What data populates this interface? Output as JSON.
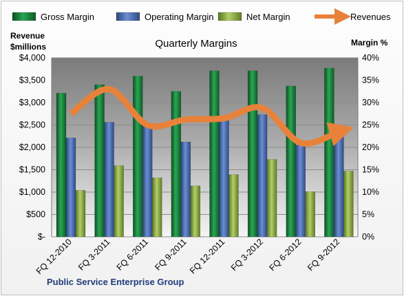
{
  "chart_data": {
    "type": "bar",
    "title": "Quarterly Margins",
    "left_axis_title": [
      "Revenue",
      "$millions"
    ],
    "right_axis_title": "Margin %",
    "footer": "Public Service Enterprise Group",
    "categories": [
      "FQ 12-2010",
      "FQ 3-2011",
      "FQ 6-2011",
      "FQ 9-2011",
      "FQ 12-2011",
      "FQ 3-2012",
      "FQ 6-2012",
      "FQ 9-2012"
    ],
    "series": [
      {
        "name": "Gross Margin",
        "axis": "right",
        "color": "#1e8a43",
        "values": [
          32.1,
          34.0,
          35.9,
          32.5,
          37.1,
          37.1,
          33.7,
          37.7
        ]
      },
      {
        "name": "Operating Margin",
        "axis": "right",
        "color": "#4f6fb5",
        "values": [
          22.1,
          25.6,
          25.0,
          21.2,
          27.0,
          27.3,
          20.5,
          24.8
        ]
      },
      {
        "name": "Net Margin",
        "axis": "right",
        "color": "#8fb14a",
        "values": [
          10.4,
          15.9,
          13.2,
          11.4,
          13.9,
          17.3,
          10.1,
          14.7
        ]
      },
      {
        "name": "Revenues",
        "axis": "left",
        "type": "line",
        "color": "#e8823a",
        "values": [
          2750,
          3300,
          2500,
          2620,
          2650,
          2880,
          2100,
          2350
        ]
      }
    ],
    "y_left": {
      "min": 0,
      "max": 4000,
      "ticks": [
        "$-",
        "$500",
        "$1,000",
        "$1,500",
        "$2,000",
        "$2,500",
        "$3,000",
        "$3,500",
        "$4,000"
      ]
    },
    "y_right": {
      "min": 0,
      "max": 40,
      "ticks": [
        "0%",
        "5%",
        "10%",
        "15%",
        "20%",
        "25%",
        "30%",
        "35%",
        "40%"
      ]
    },
    "legend_position": "top",
    "grid": true
  }
}
